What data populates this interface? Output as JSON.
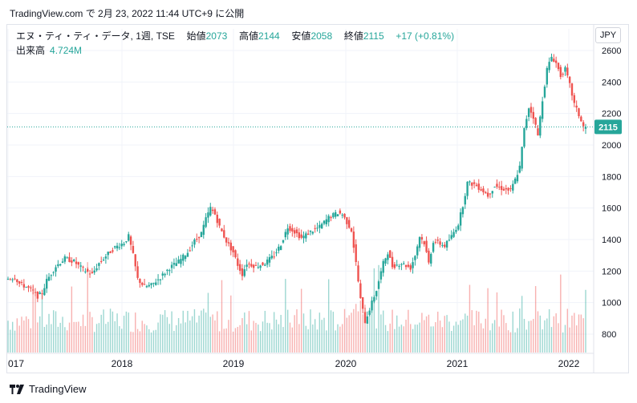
{
  "header": {
    "line": "TradingView.com で 2月 23, 2022 11:44 UTC+9 に公開"
  },
  "legend": {
    "symbol": "エヌ・ティ・ティ・データ, 1週, TSE",
    "open_label": "始値",
    "open": "2073",
    "high_label": "高値",
    "high": "2144",
    "low_label": "安値",
    "low": "2058",
    "close_label": "終値",
    "close": "2115",
    "change": "+17 (+0.81%)",
    "volume_label": "出来高",
    "volume": "4.724M"
  },
  "currency": "JPY",
  "footer": {
    "brand": "TradingView"
  },
  "colors": {
    "up": "#26a69a",
    "down": "#ef5350",
    "price_line": "#26a69a"
  },
  "chart_data": {
    "type": "candlestick",
    "interval": "1W",
    "y_ticks": [
      800,
      1000,
      1200,
      1400,
      1600,
      1800,
      2000,
      2200,
      2400,
      2600
    ],
    "ylim": [
      660,
      2680
    ],
    "x_labels": [
      "017",
      "2018",
      "2019",
      "2020",
      "2021",
      "2022"
    ],
    "last_price": 2115,
    "price_path": [
      [
        0,
        1150
      ],
      [
        4,
        1160
      ],
      [
        6,
        1120
      ],
      [
        9,
        1100
      ],
      [
        12,
        1070
      ],
      [
        14,
        1040
      ],
      [
        16,
        1060
      ],
      [
        18,
        1140
      ],
      [
        22,
        1230
      ],
      [
        26,
        1280
      ],
      [
        30,
        1260
      ],
      [
        34,
        1210
      ],
      [
        38,
        1180
      ],
      [
        41,
        1250
      ],
      [
        45,
        1310
      ],
      [
        48,
        1350
      ],
      [
        52,
        1380
      ],
      [
        54,
        1420
      ],
      [
        56,
        1300
      ],
      [
        58,
        1150
      ],
      [
        61,
        1100
      ],
      [
        64,
        1110
      ],
      [
        68,
        1160
      ],
      [
        72,
        1220
      ],
      [
        76,
        1260
      ],
      [
        80,
        1320
      ],
      [
        83,
        1390
      ],
      [
        86,
        1440
      ],
      [
        88,
        1530
      ],
      [
        90,
        1600
      ],
      [
        92,
        1560
      ],
      [
        94,
        1480
      ],
      [
        97,
        1390
      ],
      [
        100,
        1320
      ],
      [
        102,
        1240
      ],
      [
        104,
        1180
      ],
      [
        106,
        1250
      ],
      [
        110,
        1230
      ],
      [
        114,
        1250
      ],
      [
        118,
        1300
      ],
      [
        121,
        1370
      ],
      [
        124,
        1480
      ],
      [
        127,
        1450
      ],
      [
        130,
        1410
      ],
      [
        134,
        1450
      ],
      [
        138,
        1480
      ],
      [
        142,
        1540
      ],
      [
        146,
        1570
      ],
      [
        148,
        1560
      ],
      [
        150,
        1510
      ],
      [
        152,
        1460
      ],
      [
        154,
        1250
      ],
      [
        156,
        1020
      ],
      [
        158,
        880
      ],
      [
        160,
        960
      ],
      [
        163,
        1080
      ],
      [
        166,
        1250
      ],
      [
        168,
        1320
      ],
      [
        170,
        1230
      ],
      [
        174,
        1250
      ],
      [
        178,
        1220
      ],
      [
        180,
        1300
      ],
      [
        182,
        1420
      ],
      [
        184,
        1380
      ],
      [
        186,
        1250
      ],
      [
        188,
        1390
      ],
      [
        190,
        1380
      ],
      [
        193,
        1360
      ],
      [
        196,
        1420
      ],
      [
        199,
        1500
      ],
      [
        201,
        1620
      ],
      [
        203,
        1760
      ],
      [
        206,
        1750
      ],
      [
        209,
        1720
      ],
      [
        212,
        1680
      ],
      [
        215,
        1740
      ],
      [
        219,
        1720
      ],
      [
        222,
        1710
      ],
      [
        224,
        1780
      ],
      [
        226,
        1860
      ],
      [
        228,
        2100
      ],
      [
        230,
        2240
      ],
      [
        232,
        2180
      ],
      [
        234,
        2060
      ],
      [
        236,
        2290
      ],
      [
        238,
        2480
      ],
      [
        240,
        2560
      ],
      [
        242,
        2520
      ],
      [
        244,
        2440
      ],
      [
        246,
        2480
      ],
      [
        248,
        2380
      ],
      [
        250,
        2260
      ],
      [
        252,
        2190
      ],
      [
        254,
        2115
      ]
    ],
    "volume_scale": [
      0,
      1
    ]
  }
}
